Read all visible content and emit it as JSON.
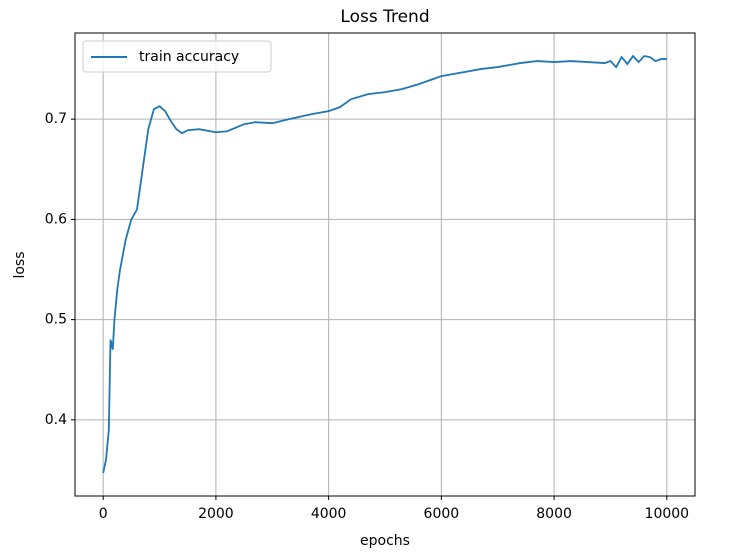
{
  "chart_data": {
    "type": "line",
    "title": "Loss Trend",
    "x_label": "epochs",
    "y_label": "loss",
    "x": [
      0,
      50,
      100,
      130,
      170,
      200,
      250,
      300,
      400,
      500,
      600,
      700,
      800,
      900,
      1000,
      1100,
      1200,
      1300,
      1400,
      1500,
      1700,
      2000,
      2200,
      2500,
      2700,
      3000,
      3300,
      3700,
      4000,
      4200,
      4400,
      4700,
      5000,
      5300,
      5600,
      6000,
      6300,
      6700,
      7000,
      7400,
      7700,
      8000,
      8300,
      8600,
      8900,
      9000,
      9100,
      9200,
      9300,
      9400,
      9500,
      9600,
      9700,
      9800,
      9900,
      10000
    ],
    "series": [
      {
        "name": "train accuracy",
        "color": "#1f77b4",
        "values": [
          0.347,
          0.36,
          0.39,
          0.48,
          0.47,
          0.5,
          0.53,
          0.55,
          0.58,
          0.6,
          0.61,
          0.65,
          0.69,
          0.71,
          0.713,
          0.708,
          0.698,
          0.69,
          0.686,
          0.689,
          0.69,
          0.687,
          0.688,
          0.695,
          0.697,
          0.696,
          0.7,
          0.705,
          0.708,
          0.712,
          0.72,
          0.725,
          0.727,
          0.73,
          0.735,
          0.743,
          0.746,
          0.75,
          0.752,
          0.756,
          0.758,
          0.757,
          0.758,
          0.757,
          0.756,
          0.758,
          0.752,
          0.762,
          0.755,
          0.763,
          0.757,
          0.763,
          0.762,
          0.758,
          0.76,
          0.76
        ]
      }
    ],
    "xlim": [
      -500,
      10500
    ],
    "ylim": [
      0.324,
      0.786
    ],
    "xticks": [
      0,
      2000,
      4000,
      6000,
      8000,
      10000
    ],
    "yticks": [
      0.4,
      0.5,
      0.6,
      0.7
    ],
    "grid": true,
    "legend": "upper left"
  }
}
